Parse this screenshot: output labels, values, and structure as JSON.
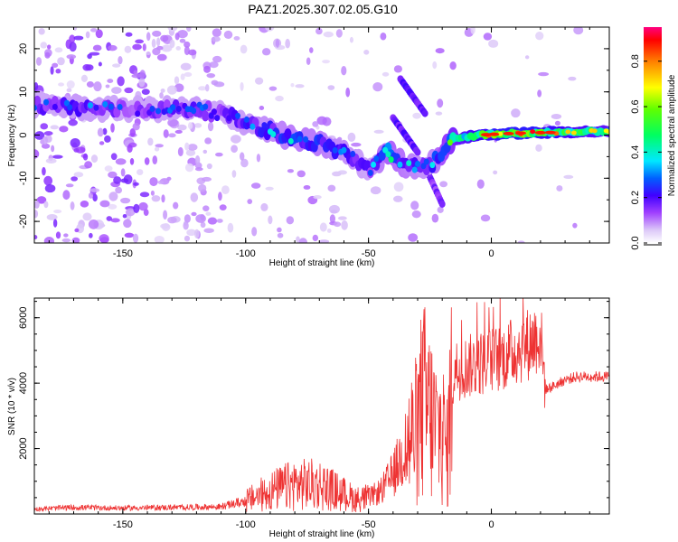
{
  "title": "PAZ1.2025.307.02.05.G10",
  "chart_data": [
    {
      "type": "heatmap",
      "xlabel": "Height of straight line (km)",
      "ylabel": "Frequency (Hz)",
      "xlim": [
        -186,
        48
      ],
      "ylim": [
        -25,
        25
      ],
      "xticks": [
        -150,
        -100,
        -50,
        0
      ],
      "yticks": [
        -20,
        -10,
        0,
        10,
        20
      ],
      "colorbar": {
        "label": "Normalized spectral amplitude",
        "range": [
          0.0,
          0.95
        ],
        "ticks": [
          0.0,
          0.2,
          0.4,
          0.6,
          0.8
        ],
        "tick_labels": [
          "0.0",
          "0.2",
          "0.4",
          "0.6",
          "0.8"
        ]
      },
      "ridge": [
        {
          "x": -180,
          "y": 7,
          "amp": 0.22
        },
        {
          "x": -170,
          "y": 6.5,
          "amp": 0.25
        },
        {
          "x": -160,
          "y": 6,
          "amp": 0.24
        },
        {
          "x": -150,
          "y": 6,
          "amp": 0.2
        },
        {
          "x": -140,
          "y": 6,
          "amp": 0.18
        },
        {
          "x": -130,
          "y": 6,
          "amp": 0.22
        },
        {
          "x": -120,
          "y": 6,
          "amp": 0.25
        },
        {
          "x": -110,
          "y": 5,
          "amp": 0.2
        },
        {
          "x": -100,
          "y": 3,
          "amp": 0.25
        },
        {
          "x": -90,
          "y": 1,
          "amp": 0.27
        },
        {
          "x": -80,
          "y": -1,
          "amp": 0.3
        },
        {
          "x": -70,
          "y": -2,
          "amp": 0.3
        },
        {
          "x": -60,
          "y": -4,
          "amp": 0.27
        },
        {
          "x": -50,
          "y": -8,
          "amp": 0.22
        },
        {
          "x": -42,
          "y": -4,
          "amp": 0.35
        },
        {
          "x": -35,
          "y": -7,
          "amp": 0.3
        },
        {
          "x": -25,
          "y": -7,
          "amp": 0.25
        },
        {
          "x": -15,
          "y": -1,
          "amp": 0.5
        },
        {
          "x": -5,
          "y": 0,
          "amp": 0.65
        },
        {
          "x": 5,
          "y": 0.3,
          "amp": 0.7
        },
        {
          "x": 15,
          "y": 0.5,
          "amp": 0.7
        },
        {
          "x": 25,
          "y": 0.6,
          "amp": 0.65
        },
        {
          "x": 35,
          "y": 0.8,
          "amp": 0.6
        },
        {
          "x": 45,
          "y": 0.8,
          "amp": 0.55
        }
      ],
      "branches": [
        {
          "x": [
            -37,
            -27
          ],
          "y": [
            13,
            5
          ],
          "amp": 0.15
        },
        {
          "x": [
            -40,
            -30
          ],
          "y": [
            4,
            -4
          ],
          "amp": 0.15
        },
        {
          "x": [
            -28,
            -20
          ],
          "y": [
            -6,
            -16
          ],
          "amp": 0.12
        }
      ]
    },
    {
      "type": "line",
      "xlabel": "Height of straight line (km)",
      "ylabel": "SNR (10 * v/v)",
      "xlim": [
        -186,
        48
      ],
      "ylim": [
        0,
        6600
      ],
      "xticks": [
        -150,
        -100,
        -50,
        0
      ],
      "yticks": [
        2000,
        4000,
        6000
      ],
      "series": [
        {
          "name": "SNR",
          "color": "#ee3333",
          "x": [
            -186,
            -170,
            -150,
            -130,
            -110,
            -100,
            -90,
            -80,
            -70,
            -60,
            -55,
            -50,
            -45,
            -40,
            -35,
            -30,
            -28,
            -25,
            -22,
            -20,
            -18,
            -17,
            -15,
            -10,
            -5,
            0,
            5,
            10,
            15,
            20,
            22,
            25,
            30,
            35,
            40,
            48
          ],
          "y": [
            150,
            200,
            180,
            200,
            220,
            400,
            700,
            900,
            900,
            600,
            450,
            500,
            700,
            1200,
            2000,
            2600,
            3500,
            3000,
            2500,
            2600,
            1800,
            3000,
            4400,
            4500,
            4600,
            4700,
            4800,
            5000,
            5200,
            5500,
            3800,
            3900,
            4100,
            4200,
            4200,
            4200
          ]
        }
      ]
    }
  ]
}
